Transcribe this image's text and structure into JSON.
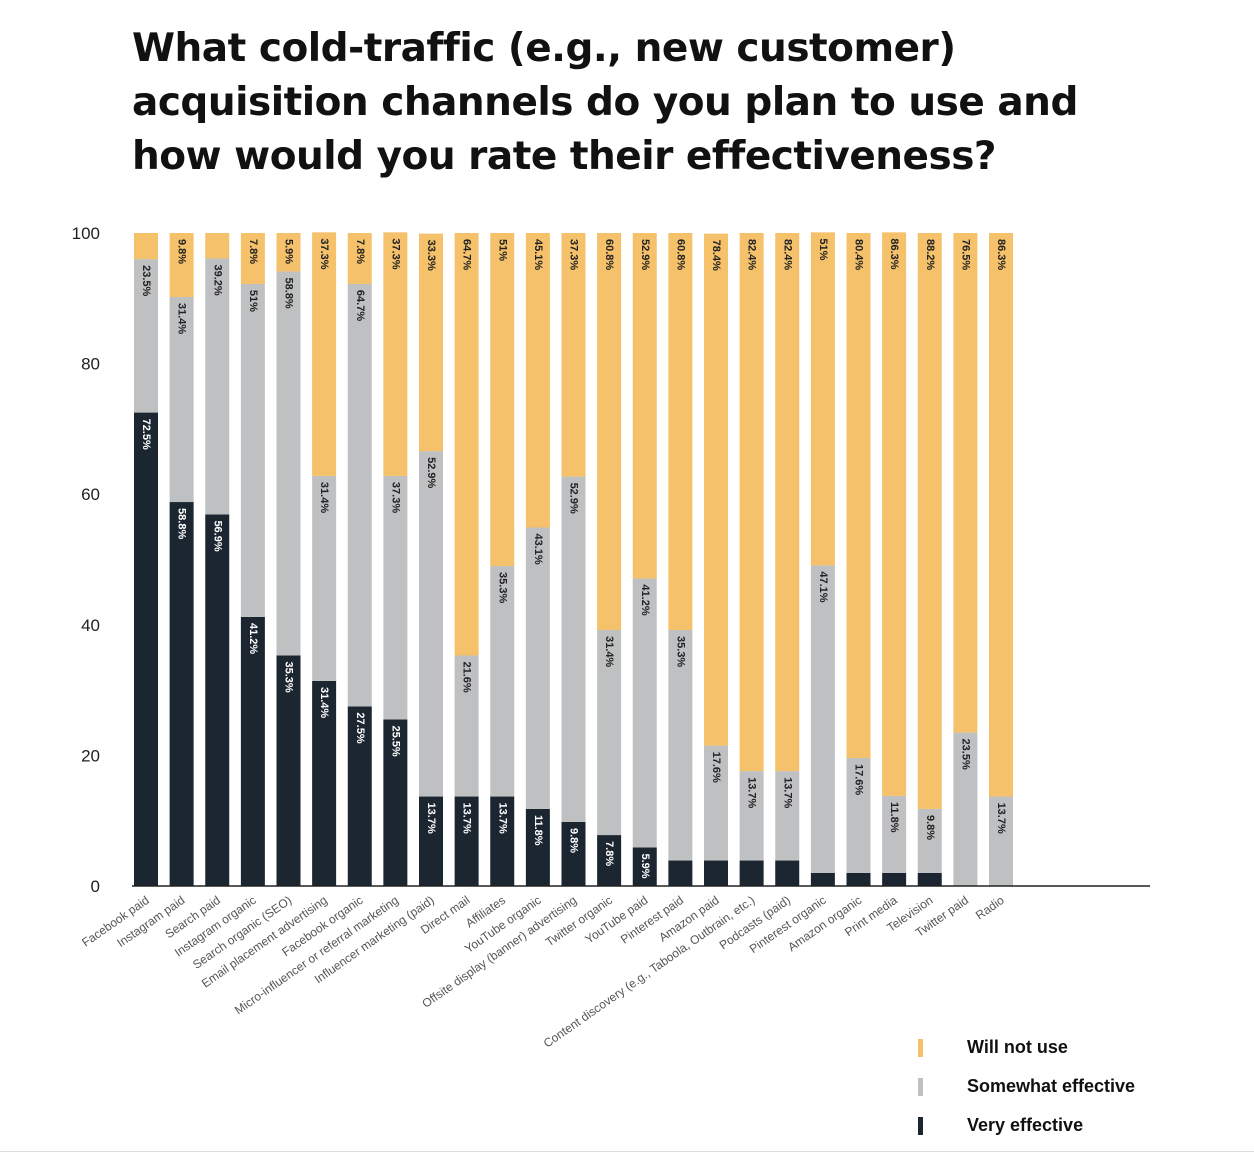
{
  "title_lines": [
    "What cold-traffic (e.g., new customer)",
    "acquisition channels do you plan to use and",
    "how would you rate their effectiveness?"
  ],
  "colors": {
    "will_not_use": "#f5c16a",
    "somewhat_effective": "#bfc0c2",
    "very_effective": "#1c2630",
    "axis": "#222222"
  },
  "chart_data": {
    "type": "bar",
    "stacked": true,
    "ylim": [
      0,
      100
    ],
    "yticks": [
      "0",
      "20",
      "40",
      "60",
      "80",
      "100"
    ],
    "categories": [
      "Facebook paid",
      "Instagram paid",
      "Search paid",
      "Instagram organic",
      "Search organic (SEO)",
      "Email placement advertising",
      "Facebook organic",
      "Micro-influencer or referral marketing",
      "Influencer marketing (paid)",
      "Direct mail",
      "Affiliates",
      "YouTube organic",
      "Offsite display (banner) advertising",
      "Twitter organic",
      "YouTube paid",
      "Pinterest paid",
      "Amazon paid",
      "Content discovery (e.g., Taboola, Outbrain, etc.)",
      "Podcasts (paid)",
      "Pinterest organic",
      "Amazon organic",
      "Print media",
      "Television",
      "Twitter paid",
      "Radio"
    ],
    "series": [
      {
        "name": "Very effective",
        "values": [
          72.5,
          58.8,
          56.9,
          41.2,
          35.3,
          31.4,
          27.5,
          25.5,
          13.7,
          13.7,
          13.7,
          11.8,
          9.8,
          7.8,
          5.9,
          3.9,
          3.9,
          3.9,
          3.9,
          2.0,
          2.0,
          2.0,
          2.0,
          0,
          0
        ],
        "labels": [
          "72.5%",
          "58.8%",
          "56.9%",
          "41.2%",
          "35.3%",
          "31.4%",
          "27.5%",
          "25.5%",
          "13.7%",
          "13.7%",
          "13.7%",
          "11.8%",
          "9.8%",
          "7.8%",
          "5.9%",
          "",
          "",
          "",
          "",
          "",
          "",
          "",
          "",
          "",
          ""
        ]
      },
      {
        "name": "Somewhat effective",
        "values": [
          23.5,
          31.4,
          39.2,
          51,
          58.8,
          31.4,
          64.7,
          37.3,
          52.9,
          21.6,
          35.3,
          43.1,
          52.9,
          31.4,
          41.2,
          35.3,
          17.6,
          13.7,
          13.7,
          47.1,
          17.6,
          11.8,
          9.8,
          23.5,
          13.7
        ],
        "labels": [
          "23.5%",
          "31.4%",
          "39.2%",
          "51%",
          "58.8%",
          "31.4%",
          "64.7%",
          "37.3%",
          "52.9%",
          "21.6%",
          "35.3%",
          "43.1%",
          "52.9%",
          "31.4%",
          "41.2%",
          "35.3%",
          "17.6%",
          "13.7%",
          "13.7%",
          "47.1%",
          "17.6%",
          "11.8%",
          "9.8%",
          "23.5%",
          "13.7%"
        ]
      },
      {
        "name": "Will not use",
        "values": [
          4.0,
          9.8,
          3.9,
          7.8,
          5.9,
          37.3,
          7.8,
          37.3,
          33.3,
          64.7,
          51,
          45.1,
          37.3,
          60.8,
          52.9,
          60.8,
          78.4,
          82.4,
          82.4,
          51,
          80.4,
          86.3,
          88.2,
          76.5,
          86.3
        ],
        "labels": [
          "",
          "9.8%",
          "",
          "7.8%",
          "5.9%",
          "37.3%",
          "7.8%",
          "37.3%",
          "33.3%",
          "64.7%",
          "51%",
          "45.1%",
          "37.3%",
          "60.8%",
          "52.9%",
          "60.8%",
          "78.4%",
          "82.4%",
          "82.4%",
          "51%",
          "80.4%",
          "86.3%",
          "88.2%",
          "76.5%",
          "86.3%"
        ]
      }
    ],
    "legend": {
      "position": "bottom-right",
      "order": [
        "Will not use",
        "Somewhat effective",
        "Very effective"
      ]
    }
  }
}
